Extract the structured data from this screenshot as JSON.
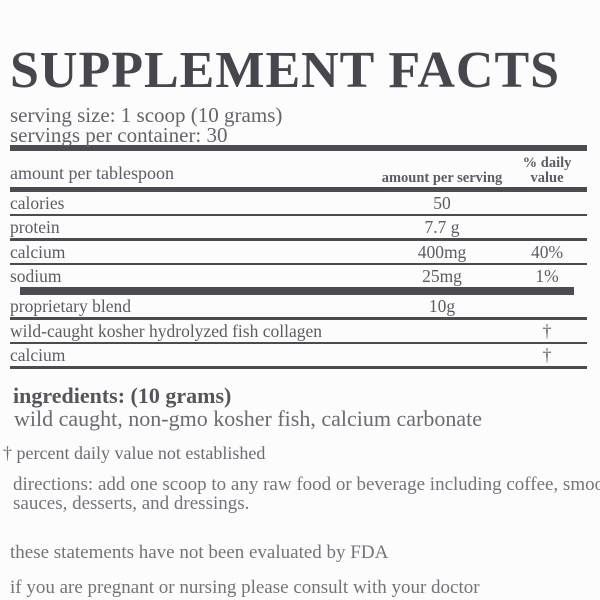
{
  "label": {
    "title": "SUPPLEMENT FACTS",
    "serving_size": "serving size: 1 scoop (10 grams)",
    "servings_per_container": "servings per container: 30",
    "table": {
      "header": {
        "col1": "amount per tablespoon",
        "col2": "amount per serving",
        "col3": "% daily value"
      },
      "rows": [
        {
          "name": "calories",
          "amount": "50",
          "dv": ""
        },
        {
          "name": "protein",
          "amount": "7.7 g",
          "dv": ""
        },
        {
          "name": "calcium",
          "amount": "400mg",
          "dv": "40%"
        },
        {
          "name": "sodium",
          "amount": "25mg",
          "dv": "1%"
        }
      ],
      "blend": [
        {
          "name": "proprietary blend",
          "amount": "10g",
          "dv": ""
        },
        {
          "name": "wild-caught kosher hydrolyzed fish collagen",
          "amount": "",
          "dv": "†"
        },
        {
          "name": "calcium",
          "amount": "",
          "dv": "†"
        }
      ]
    },
    "ingredients_heading": "ingredients: (10 grams)",
    "ingredients_list": "wild caught, non-gmo kosher fish, calcium carbonate",
    "footnote": "† percent daily value not established",
    "directions_line1": "directions: add one scoop to any raw food or beverage including coffee, smoothies,",
    "directions_line2": "sauces, desserts, and dressings.",
    "fda_statement": "these statements have not been evaluated by FDA",
    "pregnancy_statement": "if you are pregnant or nursing please consult with your doctor",
    "colors": {
      "background": "#fdfcfc",
      "title_text": "#46464e",
      "table_text": "#5c5c63",
      "body_text": "#73737a",
      "rule": "#4b4b52"
    }
  }
}
